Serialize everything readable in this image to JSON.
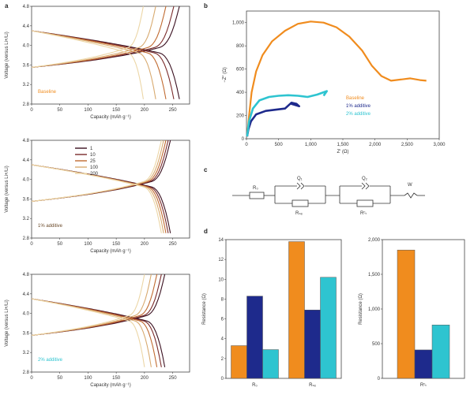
{
  "panels": {
    "a": "a",
    "b": "b",
    "c": "c",
    "d": "d"
  },
  "colors": {
    "orange": "#f08c1e",
    "navy": "#1e2a8c",
    "cyan": "#2ec4d0",
    "rates": [
      "#3a1020",
      "#7a2a2a",
      "#c06a30",
      "#d8aa70",
      "#ecd6a6"
    ]
  },
  "chart_data": [
    {
      "id": "a1",
      "type": "line",
      "ylabel": "Voltage (versus Li+/Li)",
      "xlabel": "Capacity (mAh g⁻¹)",
      "xlim": [
        0,
        280
      ],
      "ylim": [
        2.8,
        4.8
      ],
      "xticks": [
        "0",
        "50",
        "100",
        "150",
        "200",
        "250"
      ],
      "yticks": [
        "2.8",
        "3.2",
        "3.6",
        "4.0",
        "4.4",
        "4.8"
      ],
      "annotation": "Baseline",
      "series": [
        {
          "name": "1",
          "max_capacity": 262
        },
        {
          "name": "10",
          "max_capacity": 252
        },
        {
          "name": "25",
          "max_capacity": 238
        },
        {
          "name": "100",
          "max_capacity": 220
        },
        {
          "name": "200",
          "max_capacity": 198
        }
      ]
    },
    {
      "id": "a2",
      "type": "line",
      "ylabel": "Voltage (versus Li+/Li)",
      "xlabel": "Capacity (mAh g⁻¹)",
      "xlim": [
        0,
        280
      ],
      "ylim": [
        2.8,
        4.8
      ],
      "xticks": [
        "0",
        "50",
        "100",
        "150",
        "200",
        "250"
      ],
      "yticks": [
        "2.8",
        "3.2",
        "3.6",
        "4.0",
        "4.4",
        "4.8"
      ],
      "annotation": "1% additive",
      "legend": [
        "1",
        "10",
        "25",
        "100",
        "200"
      ],
      "series": [
        {
          "name": "1",
          "max_capacity": 246
        },
        {
          "name": "10",
          "max_capacity": 242
        },
        {
          "name": "25",
          "max_capacity": 238
        },
        {
          "name": "100",
          "max_capacity": 234
        },
        {
          "name": "200",
          "max_capacity": 230
        }
      ]
    },
    {
      "id": "a3",
      "type": "line",
      "ylabel": "Voltage (versus Li+/Li)",
      "xlabel": "Capacity (mAh g⁻¹)",
      "xlim": [
        0,
        280
      ],
      "ylim": [
        2.8,
        4.8
      ],
      "xticks": [
        "0",
        "50",
        "100",
        "150",
        "200",
        "250"
      ],
      "yticks": [
        "2.8",
        "3.2",
        "3.6",
        "4.0",
        "4.4",
        "4.8"
      ],
      "annotation": "2% additive",
      "series": [
        {
          "name": "1",
          "max_capacity": 236
        },
        {
          "name": "10",
          "max_capacity": 230
        },
        {
          "name": "25",
          "max_capacity": 222
        },
        {
          "name": "100",
          "max_capacity": 212
        },
        {
          "name": "200",
          "max_capacity": 200
        }
      ]
    },
    {
      "id": "b",
      "type": "line",
      "xlabel": "Z′ (Ω)",
      "ylabel": "−Z″ (Ω)",
      "xlim": [
        0,
        3000
      ],
      "ylim": [
        0,
        1100
      ],
      "xticks": [
        "0",
        "500",
        "1,000",
        "1,500",
        "2,000",
        "2,500",
        "3,000"
      ],
      "yticks": [
        "0",
        "200",
        "400",
        "600",
        "800",
        "1,000"
      ],
      "legend": [
        "Baseline",
        "1% additive",
        "2% additive"
      ],
      "series": [
        {
          "name": "Baseline",
          "x": [
            10,
            40,
            80,
            150,
            250,
            400,
            600,
            800,
            1000,
            1200,
            1400,
            1600,
            1800,
            1950,
            2100,
            2250,
            2400,
            2550,
            2700,
            2800
          ],
          "y": [
            20,
            200,
            400,
            580,
            720,
            840,
            930,
            990,
            1010,
            1000,
            960,
            880,
            760,
            630,
            540,
            500,
            510,
            520,
            505,
            500
          ]
        },
        {
          "name": "1% additive",
          "x": [
            10,
            30,
            70,
            150,
            300,
            450,
            600,
            700,
            780,
            820,
            700,
            760
          ],
          "y": [
            20,
            80,
            150,
            210,
            240,
            250,
            260,
            310,
            300,
            280,
            300,
            300
          ]
        },
        {
          "name": "2% additive",
          "x": [
            10,
            40,
            100,
            200,
            350,
            500,
            650,
            800,
            950,
            1100,
            1250,
            1200
          ],
          "y": [
            20,
            150,
            260,
            330,
            360,
            370,
            375,
            370,
            360,
            380,
            410,
            370
          ]
        }
      ]
    },
    {
      "id": "c",
      "type": "diagram",
      "elements": [
        "R₀",
        "Q₁",
        "Rₛₑ",
        "Q₂",
        "Rᶜₜ",
        "W"
      ]
    },
    {
      "id": "d1",
      "type": "bar",
      "ylabel": "Resistance (Ω)",
      "categories": [
        "R₀",
        "Rₛₑ"
      ],
      "ylim": [
        0,
        14
      ],
      "yticks": [
        "0",
        "2",
        "4",
        "6",
        "8",
        "10",
        "12",
        "14"
      ],
      "series": [
        {
          "name": "Baseline",
          "values": [
            3.3,
            13.8
          ]
        },
        {
          "name": "1% additive",
          "values": [
            8.3,
            6.9
          ]
        },
        {
          "name": "2% additive",
          "values": [
            2.9,
            10.2
          ]
        }
      ]
    },
    {
      "id": "d2",
      "type": "bar",
      "ylabel": "Resistance (Ω)",
      "categories": [
        "Rᶜₜ"
      ],
      "ylim": [
        0,
        2000
      ],
      "yticks": [
        "0",
        "500",
        "1,000",
        "1,500",
        "2,000"
      ],
      "series": [
        {
          "name": "Baseline",
          "values": [
            1850
          ]
        },
        {
          "name": "1% additive",
          "values": [
            410
          ]
        },
        {
          "name": "2% additive",
          "values": [
            770
          ]
        }
      ]
    }
  ]
}
